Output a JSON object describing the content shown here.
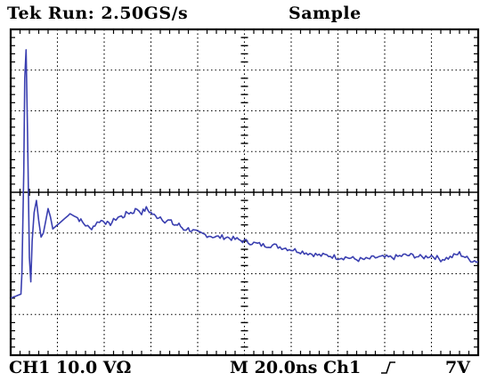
{
  "header": {
    "status": "Tek Run: 2.50GS/s",
    "mode": "Sample"
  },
  "footer": {
    "channel_scale": "CH1 10.0 VΩ",
    "timebase": "M 20.0ns Ch1",
    "trigger_slope_icon": "rising-edge-icon",
    "trigger_level": "7V"
  },
  "display": {
    "graticule": {
      "h_divisions": 10,
      "v_divisions": 8,
      "minor_ticks_per_division": 5
    },
    "grid_color": "#000000",
    "trace_color": "#3a3fb0"
  },
  "chart_data": {
    "type": "line",
    "units": "divisions",
    "xlim": [
      0,
      10
    ],
    "ylim": [
      -4,
      4
    ],
    "series": [
      {
        "x": [
          0,
          0.22,
          0.24,
          0.28,
          0.3,
          0.33,
          0.36,
          0.4,
          0.43,
          0.46,
          0.5,
          0.55,
          0.6,
          0.65,
          0.7,
          0.75,
          0.8,
          0.85,
          0.9,
          1.0,
          1.1,
          1.2,
          1.3,
          1.4,
          1.5,
          1.6,
          1.7,
          1.8,
          1.9,
          2.0,
          2.1,
          2.2,
          2.3,
          2.4,
          2.5,
          2.6,
          2.7,
          2.8,
          2.9,
          3.0,
          3.1,
          3.2,
          3.3,
          3.4,
          3.5,
          3.6,
          3.7,
          3.8,
          3.9,
          4.0,
          4.2,
          4.4,
          4.6,
          4.8,
          5.0,
          5.2,
          5.4,
          5.6,
          5.8,
          6.0,
          6.2,
          6.4,
          6.6,
          6.8,
          7.0,
          7.2,
          7.4,
          7.6,
          7.8,
          8.0,
          8.2,
          8.4,
          8.6,
          8.8,
          9.0,
          9.2,
          9.4,
          9.6,
          9.8,
          10.0
        ],
        "y": [
          -2.6,
          -2.5,
          -2.0,
          0.5,
          2.8,
          3.5,
          1.5,
          -1.6,
          -2.2,
          -1.2,
          -0.5,
          -0.2,
          -0.7,
          -1.1,
          -1.0,
          -0.7,
          -0.4,
          -0.6,
          -0.9,
          -0.8,
          -0.7,
          -0.6,
          -0.5,
          -0.6,
          -0.7,
          -0.8,
          -0.9,
          -0.8,
          -0.7,
          -0.7,
          -0.8,
          -0.7,
          -0.6,
          -0.6,
          -0.5,
          -0.5,
          -0.4,
          -0.5,
          -0.4,
          -0.5,
          -0.6,
          -0.6,
          -0.7,
          -0.7,
          -0.8,
          -0.8,
          -0.9,
          -0.9,
          -0.95,
          -1.0,
          -1.05,
          -1.1,
          -1.1,
          -1.15,
          -1.2,
          -1.25,
          -1.3,
          -1.3,
          -1.35,
          -1.4,
          -1.45,
          -1.5,
          -1.55,
          -1.55,
          -1.6,
          -1.6,
          -1.65,
          -1.65,
          -1.6,
          -1.6,
          -1.6,
          -1.55,
          -1.55,
          -1.6,
          -1.55,
          -1.65,
          -1.6,
          -1.5,
          -1.65,
          -1.7
        ]
      }
    ]
  }
}
